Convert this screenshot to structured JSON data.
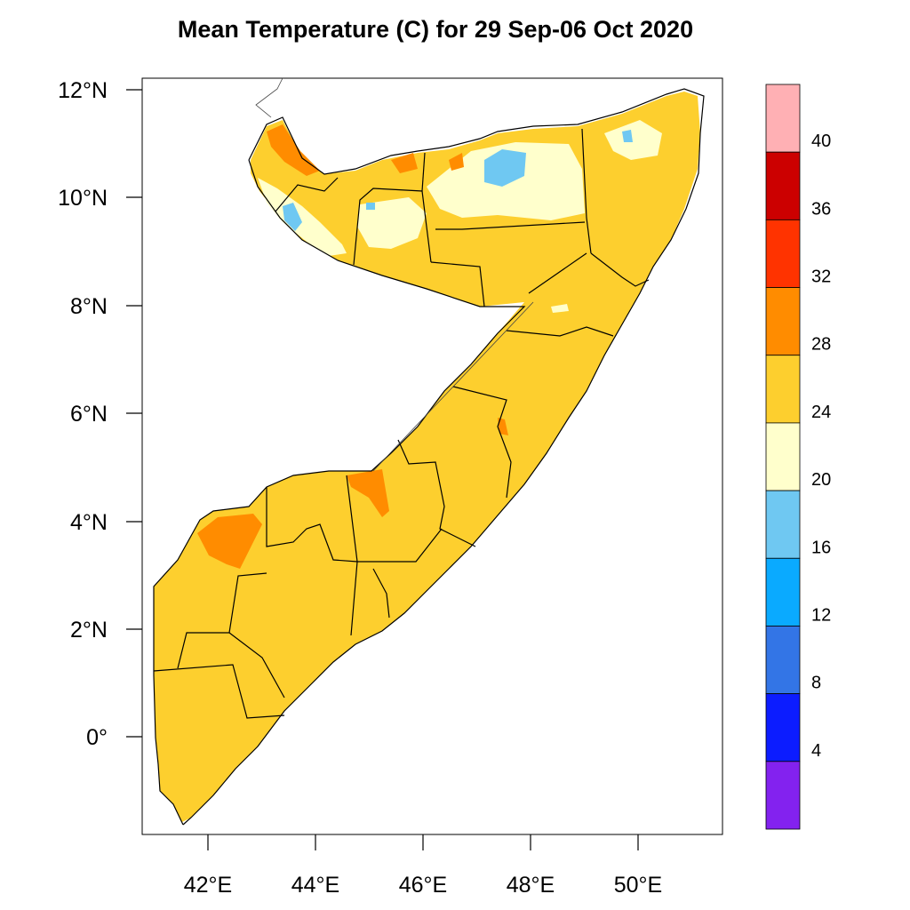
{
  "title": "Mean Temperature (C) for 29 Sep-06 Oct 2020",
  "map": {
    "lat_labels": [
      "12°N",
      "10°N",
      "8°N",
      "6°N",
      "4°N",
      "2°N",
      "0°"
    ],
    "lon_labels": [
      "42°E",
      "44°E",
      "46°E",
      "48°E",
      "50°E"
    ],
    "lat_range": [
      -1.8,
      12.2
    ],
    "lon_range": [
      40.8,
      51.6
    ]
  },
  "colorbar": {
    "labels": [
      "40",
      "36",
      "32",
      "28",
      "24",
      "20",
      "16",
      "12",
      "8",
      "4"
    ],
    "colors": [
      "#ffb0b4",
      "#cc0000",
      "#ff3300",
      "#ff8c00",
      "#fdcf2e",
      "#ffffcc",
      "#6fc8f2",
      "#0aaaff",
      "#3375e6",
      "#0c1cff",
      "#8322ef"
    ]
  },
  "legend_colors": {
    "warm": "#fdcf2e",
    "hot": "#ff8c00",
    "mild": "#ffffcc",
    "cool": "#6fc8f2"
  }
}
